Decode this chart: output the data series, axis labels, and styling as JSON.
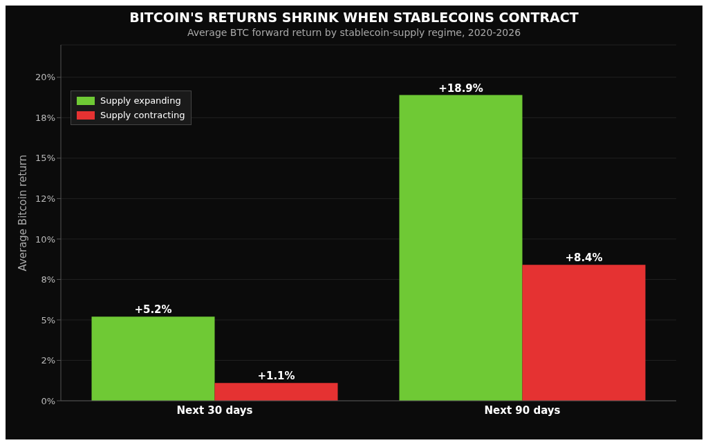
{
  "chart_data": {
    "type": "bar",
    "title": "BITCOIN'S RETURNS SHRINK WHEN STABLECOINS CONTRACT",
    "subtitle": "Average BTC forward return by stablecoin-supply regime, 2020-2026",
    "ylabel": "Average Bitcoin return",
    "categories": [
      "Next 30 days",
      "Next 90 days"
    ],
    "series": [
      {
        "name": "Supply expanding",
        "color": "#6fc935",
        "values": [
          5.2,
          18.9
        ],
        "value_labels": [
          "+5.2%",
          "+18.9%"
        ]
      },
      {
        "name": "Supply contracting",
        "color": "#e53232",
        "values": [
          1.1,
          8.4
        ],
        "value_labels": [
          "+1.1%",
          "+8.4%"
        ]
      }
    ],
    "ylim": [
      0,
      22
    ],
    "yticks": [
      {
        "value": 0,
        "label": "0%"
      },
      {
        "value": 2.5,
        "label": "2%"
      },
      {
        "value": 5,
        "label": "5%"
      },
      {
        "value": 7.5,
        "label": "8%"
      },
      {
        "value": 10,
        "label": "10%"
      },
      {
        "value": 12.5,
        "label": "12%"
      },
      {
        "value": 15,
        "label": "15%"
      },
      {
        "value": 17.5,
        "label": "18%"
      },
      {
        "value": 20,
        "label": "20%"
      }
    ],
    "grid": "y",
    "legend": "top left"
  }
}
